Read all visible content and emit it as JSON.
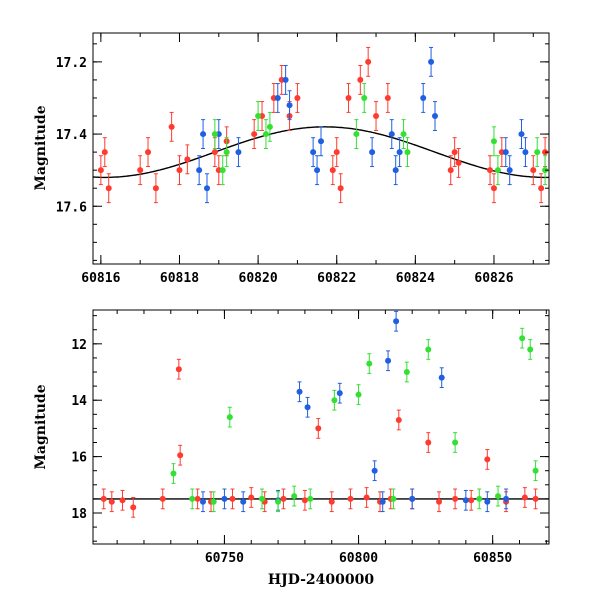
{
  "chart_data": [
    {
      "type": "scatter",
      "panel": "top",
      "xlabel": "",
      "ylabel": "Magnitude",
      "xlim": [
        60815.8,
        60827.4
      ],
      "ylim": [
        17.76,
        17.12
      ],
      "y_inverted": true,
      "x_ticks": [
        "60816",
        "60818",
        "60820",
        "60822",
        "60824",
        "60826"
      ],
      "y_ticks": [
        "17.2",
        "17.4",
        "17.6"
      ],
      "grid": false,
      "colors": {
        "red": "#ff3b2f",
        "blue": "#1f5fe0",
        "green": "#33e033"
      },
      "model_curve": {
        "mean": 17.45,
        "amplitude": 0.07,
        "peak_x": 60821.7,
        "period": 11.2
      },
      "series": [
        {
          "color": "#ff3b2f",
          "x": [
            60816.0,
            60816.1,
            60816.2,
            60817.0,
            60817.2,
            60817.4,
            60817.8,
            60818.0,
            60818.2,
            60818.9,
            60819.0,
            60819.2,
            60819.9,
            60820.1,
            60820.4,
            60820.6,
            60820.8,
            60821.0,
            60821.9,
            60822.0,
            60822.1,
            60822.3,
            60822.6,
            60822.8,
            60823.0,
            60823.3,
            60824.9,
            60825.0,
            60825.1,
            60825.9,
            60826.0,
            60826.2,
            60827.0,
            60827.2,
            60827.3
          ],
          "y": [
            17.5,
            17.45,
            17.55,
            17.5,
            17.45,
            17.55,
            17.38,
            17.5,
            17.47,
            17.45,
            17.5,
            17.42,
            17.4,
            17.35,
            17.3,
            17.25,
            17.35,
            17.3,
            17.5,
            17.45,
            17.55,
            17.3,
            17.25,
            17.2,
            17.35,
            17.3,
            17.5,
            17.45,
            17.48,
            17.5,
            17.55,
            17.45,
            17.5,
            17.55,
            17.45
          ]
        },
        {
          "color": "#1f5fe0",
          "x": [
            60818.5,
            60818.6,
            60818.7,
            60819.0,
            60819.5,
            60820.5,
            60820.7,
            60820.8,
            60821.4,
            60821.5,
            60821.6,
            60822.9,
            60823.4,
            60823.5,
            60823.6,
            60824.2,
            60824.4,
            60824.5,
            60826.3,
            60826.4,
            60826.7,
            60826.8
          ],
          "y": [
            17.5,
            17.4,
            17.55,
            17.4,
            17.45,
            17.3,
            17.25,
            17.32,
            17.45,
            17.5,
            17.42,
            17.45,
            17.4,
            17.5,
            17.45,
            17.3,
            17.2,
            17.35,
            17.45,
            17.5,
            17.4,
            17.45
          ]
        },
        {
          "color": "#33e033",
          "x": [
            60818.9,
            60819.1,
            60819.2,
            60820.0,
            60820.2,
            60820.3,
            60822.5,
            60822.7,
            60823.7,
            60823.8,
            60826.0,
            60826.1,
            60827.1,
            60827.3
          ],
          "y": [
            17.4,
            17.5,
            17.45,
            17.35,
            17.4,
            17.38,
            17.4,
            17.3,
            17.4,
            17.45,
            17.42,
            17.5,
            17.45,
            17.5
          ]
        }
      ]
    },
    {
      "type": "scatter",
      "panel": "bottom",
      "xlabel": "HJD-2400000",
      "ylabel": "Magnitude",
      "xlim": [
        60701,
        60871
      ],
      "ylim": [
        19.1,
        10.8
      ],
      "y_inverted": true,
      "x_ticks": [
        "60750",
        "60800",
        "60850"
      ],
      "y_ticks": [
        "12",
        "14",
        "16",
        "18"
      ],
      "grid": false,
      "colors": {
        "red": "#ff3b2f",
        "blue": "#1f5fe0",
        "green": "#33e033"
      },
      "model_curve": {
        "mean": 17.5,
        "amplitude": 0.0,
        "peak_x": 60800,
        "period": 11.2
      },
      "series": [
        {
          "color": "#ff3b2f",
          "x": [
            60705,
            60708,
            60712,
            60716,
            60727,
            60733,
            60733.5,
            60740,
            60745,
            60753,
            60760,
            60765,
            60772,
            60780,
            60785,
            60790,
            60797,
            60803,
            60808,
            60812,
            60815,
            60820,
            60826,
            60830,
            60836,
            60842,
            60848,
            60855,
            60862,
            60866
          ],
          "y": [
            17.5,
            17.6,
            17.55,
            17.8,
            17.5,
            12.9,
            15.95,
            17.5,
            17.6,
            17.5,
            17.45,
            17.6,
            17.5,
            17.55,
            15.0,
            17.6,
            17.5,
            17.45,
            17.6,
            17.5,
            14.7,
            17.5,
            15.5,
            17.6,
            17.5,
            17.55,
            16.1,
            17.6,
            17.45,
            17.5
          ]
        },
        {
          "color": "#1f5fe0",
          "x": [
            60742,
            60750,
            60757,
            60770,
            60778,
            60781,
            60793,
            60806,
            60809,
            60811,
            60814,
            60820,
            60831,
            60840,
            60848,
            60855
          ],
          "y": [
            17.6,
            17.5,
            17.6,
            17.55,
            13.7,
            14.25,
            13.75,
            16.5,
            17.6,
            12.6,
            11.2,
            17.5,
            13.2,
            17.55,
            17.6,
            17.5
          ]
        },
        {
          "color": "#33e033",
          "x": [
            60731,
            60738,
            60746,
            60752,
            60764,
            60770,
            60776,
            60782,
            60791,
            60800,
            60804,
            60813,
            60818,
            60826,
            60836,
            60845,
            60852,
            60861,
            60864,
            60866
          ],
          "y": [
            16.6,
            17.5,
            17.6,
            14.6,
            17.5,
            17.6,
            17.4,
            17.5,
            14.0,
            13.8,
            12.7,
            17.5,
            13.0,
            12.2,
            15.5,
            17.5,
            17.4,
            11.8,
            12.2,
            16.5
          ]
        }
      ]
    }
  ]
}
